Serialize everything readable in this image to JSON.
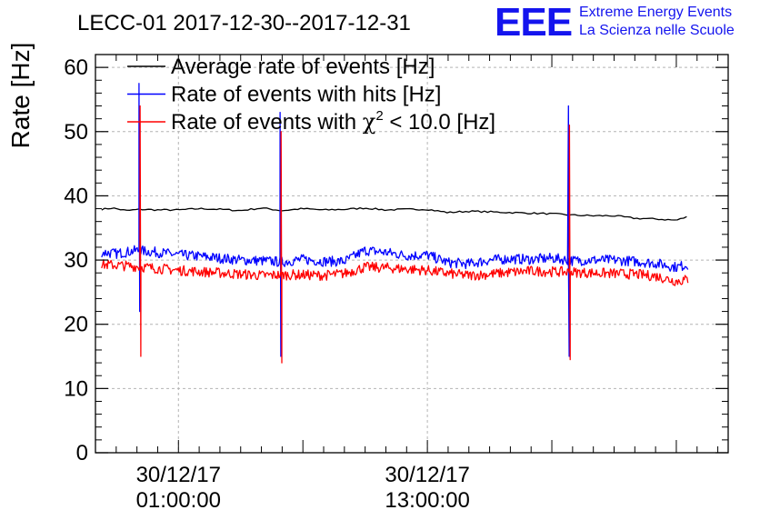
{
  "header": {
    "title": "LECC-01 2017-12-30--2017-12-31",
    "logo_text": "EEE",
    "org_line1": "Extreme Energy Events",
    "org_line2": "La Scienza nelle Scuole"
  },
  "colors": {
    "average": "#000000",
    "hits": "#0000ff",
    "chi2": "#ff0000",
    "logo": "#1414ee",
    "grid": "#b4b4b4"
  },
  "chart_data": {
    "type": "line",
    "title": "LECC-01 2017-12-30--2017-12-31",
    "xlabel": "",
    "ylabel": "Rate [Hz]",
    "x_unit": "hours since 2017-12-30 00:00",
    "xlim": [
      -3,
      27.5
    ],
    "ylim": [
      0,
      62
    ],
    "yticks": [
      0,
      10,
      20,
      30,
      40,
      50,
      60
    ],
    "xticks": [
      {
        "x": 1,
        "label_date": "30/12/17",
        "label_time": "01:00:00"
      },
      {
        "x": 13,
        "label_date": "30/12/17",
        "label_time": "13:00:00"
      }
    ],
    "grid": true,
    "legend_position": "top-left",
    "legend": [
      {
        "label": "Average rate of events [Hz]",
        "color": "#000000",
        "key": "average"
      },
      {
        "label": "Rate of events with hits [Hz]",
        "color": "#0000ff",
        "key": "hits"
      },
      {
        "label_pre": "Rate of events with ",
        "label_chi": "χ",
        "label_sup": "2",
        "label_post": " < 10.0 [Hz]",
        "color": "#ff0000",
        "key": "chi2"
      }
    ],
    "series": [
      {
        "key": "average",
        "name": "Average rate of events [Hz]",
        "color": "#000000",
        "x": [
          -2.7,
          -2.2,
          -1.5,
          -0.8,
          0,
          1,
          2,
          3,
          4,
          5,
          6,
          7,
          8,
          9,
          10,
          11,
          12,
          13,
          14,
          15,
          16,
          17,
          18,
          19,
          20,
          21,
          22,
          23,
          24,
          25,
          25.6
        ],
        "y": [
          37.9,
          38.1,
          37.7,
          37.9,
          37.8,
          37.8,
          38.0,
          37.9,
          37.7,
          38.1,
          37.7,
          38.0,
          37.8,
          37.9,
          38.1,
          37.8,
          37.9,
          37.9,
          37.4,
          37.6,
          37.5,
          37.4,
          37.3,
          37.2,
          37.0,
          36.9,
          36.9,
          36.5,
          36.4,
          36.2,
          36.8
        ]
      },
      {
        "key": "hits",
        "name": "Rate of events with hits [Hz]",
        "color": "#0000ff",
        "x": [
          -2.7,
          -2,
          -1,
          0,
          1,
          2,
          3,
          4,
          5,
          6,
          7,
          8,
          9,
          10,
          11,
          12,
          13,
          14,
          15,
          16,
          17,
          18,
          19,
          20,
          21,
          22,
          23,
          24,
          25,
          25.6
        ],
        "y": [
          31.2,
          31.0,
          31.5,
          31.2,
          30.8,
          30.6,
          30.3,
          30.0,
          29.9,
          29.7,
          30.1,
          29.8,
          29.8,
          31.5,
          31.2,
          30.7,
          30.8,
          29.6,
          29.4,
          30.0,
          30.2,
          30.1,
          30.3,
          29.9,
          30.0,
          30.0,
          29.8,
          29.5,
          28.9,
          29.3
        ],
        "spikes": [
          {
            "x": -0.9,
            "max": 57.5,
            "min": 22
          },
          {
            "x": 5.9,
            "max": 53,
            "min": 15
          },
          {
            "x": 19.8,
            "max": 54,
            "min": 15
          }
        ]
      },
      {
        "key": "chi2",
        "name": "Rate of events with χ2 < 10.0 [Hz]",
        "color": "#ff0000",
        "x": [
          -2.7,
          -2,
          -1,
          0,
          1,
          2,
          3,
          4,
          5,
          6,
          7,
          8,
          9,
          10,
          11,
          12,
          13,
          14,
          15,
          16,
          17,
          18,
          19,
          20,
          21,
          22,
          23,
          24,
          25,
          25.6
        ],
        "y": [
          29.3,
          29.2,
          29.0,
          28.7,
          28.4,
          28.2,
          28.0,
          27.8,
          27.6,
          27.7,
          27.7,
          27.6,
          27.9,
          28.9,
          28.8,
          28.6,
          28.4,
          27.9,
          27.6,
          27.8,
          28.1,
          28.3,
          28.2,
          28.1,
          28.0,
          27.9,
          27.8,
          27.5,
          26.7,
          27.0
        ],
        "spikes": [
          {
            "x": -0.85,
            "max": 54,
            "min": 15
          },
          {
            "x": 5.95,
            "max": 50,
            "min": 14
          },
          {
            "x": 19.85,
            "max": 51,
            "min": 14.5
          }
        ]
      }
    ]
  }
}
